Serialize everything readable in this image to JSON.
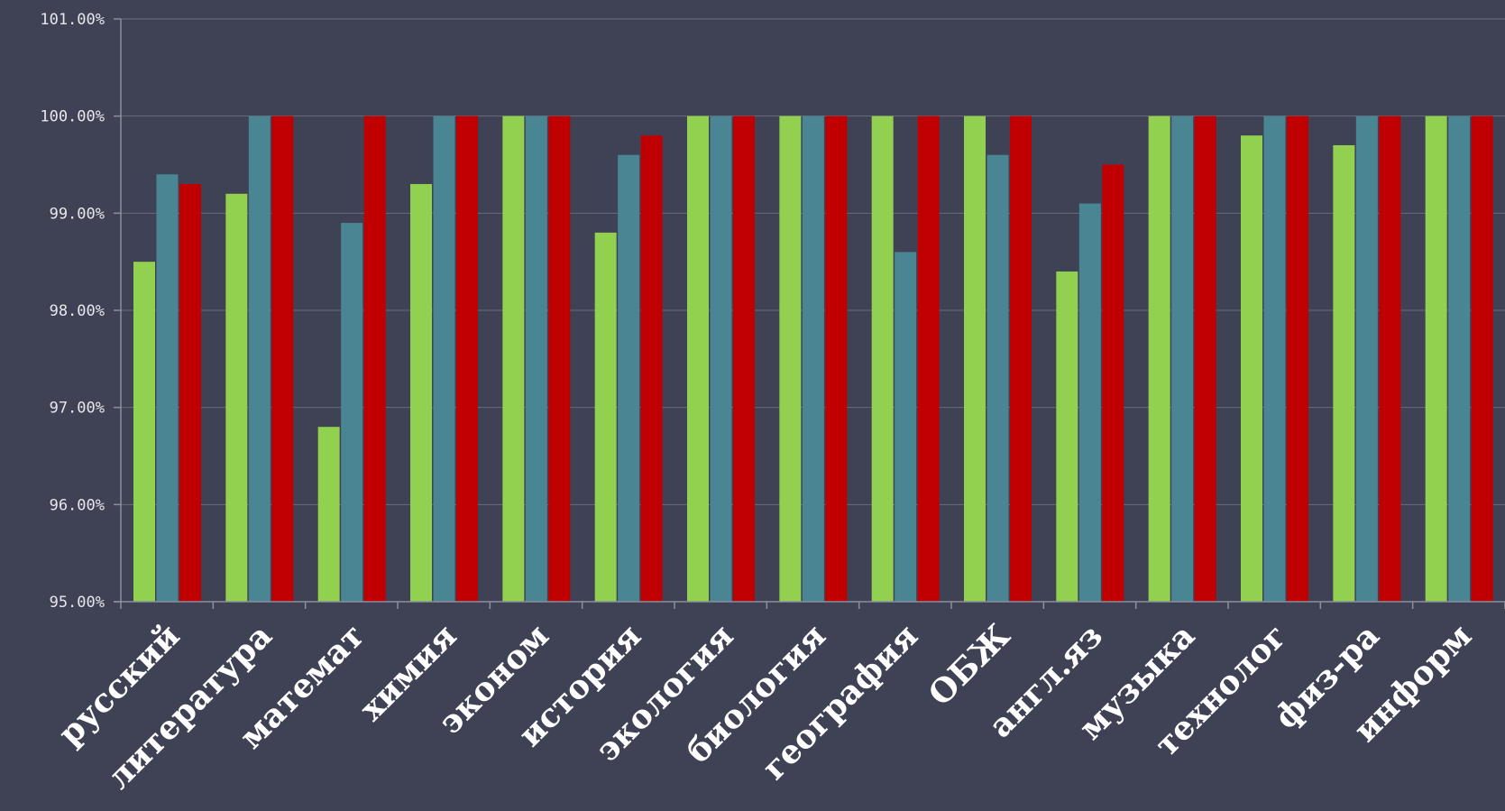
{
  "chart_data": {
    "type": "bar",
    "categories": [
      "русский",
      "литература",
      "математ",
      "химия",
      "эконом",
      "история",
      "экология",
      "биология",
      "география",
      "ОБЖ",
      "англ.яз",
      "музыка",
      "технолог",
      "физ-ра",
      "информ"
    ],
    "series": [
      {
        "color": "#92d050",
        "values": [
          98.5,
          99.2,
          96.8,
          99.3,
          100.0,
          98.8,
          100.0,
          100.0,
          100.0,
          100.0,
          98.4,
          100.0,
          99.8,
          99.7,
          100.0
        ]
      },
      {
        "color": "#4a8594",
        "values": [
          99.4,
          100.0,
          98.9,
          100.0,
          100.0,
          99.6,
          100.0,
          100.0,
          98.6,
          99.6,
          99.1,
          100.0,
          100.0,
          100.0,
          100.0
        ]
      },
      {
        "color": "#c00000",
        "values": [
          99.3,
          100.0,
          100.0,
          100.0,
          100.0,
          99.8,
          100.0,
          100.0,
          100.0,
          100.0,
          99.5,
          100.0,
          100.0,
          100.0,
          100.0
        ]
      }
    ],
    "yticks": [
      "95.00%",
      "96.00%",
      "97.00%",
      "98.00%",
      "99.00%",
      "100.00%",
      "101.00%"
    ],
    "ylim": [
      95,
      101
    ],
    "grid": true,
    "legend": "none",
    "colors": {
      "background": "#3f4254",
      "gridline": "#6a6c7c",
      "axis": "#8c8e9c"
    }
  }
}
